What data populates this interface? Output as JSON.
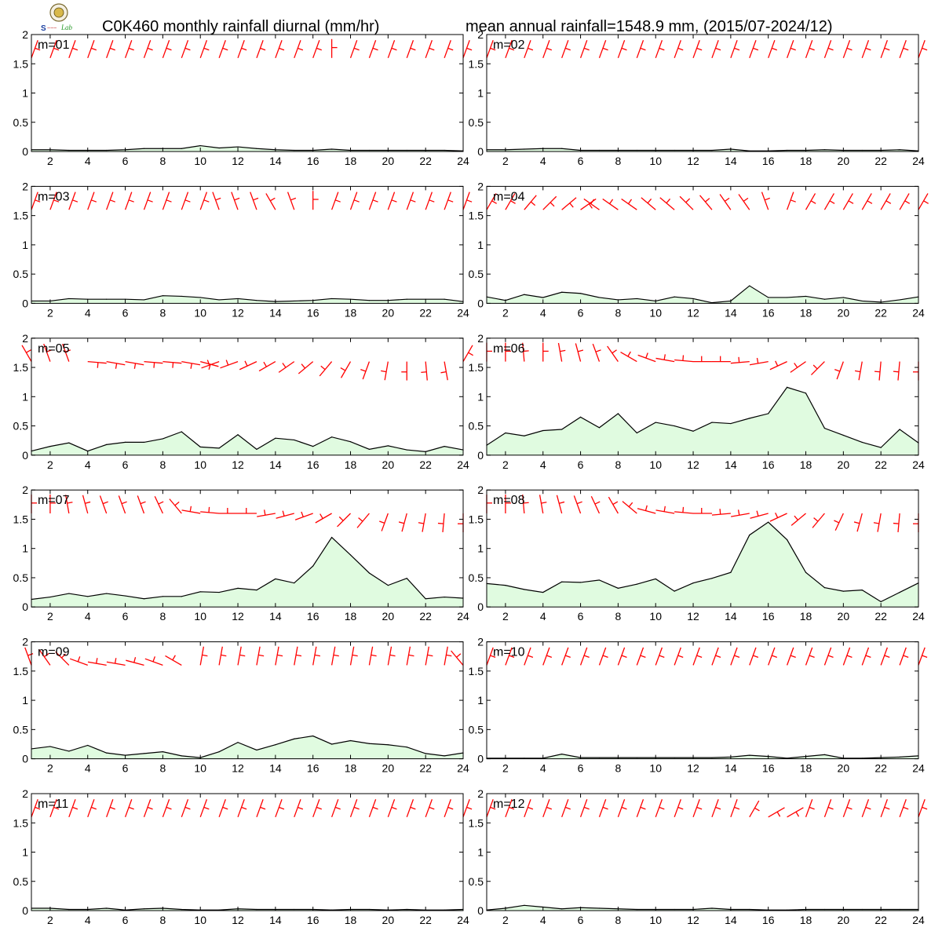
{
  "page": {
    "title_left": "C0K460 monthly rainfall diurnal (mm/hr)",
    "title_right": "mean annual rainfall=1548.9 mm, (2015/07-2024/12)",
    "logo_text": "Lab"
  },
  "colors": {
    "fill": "#e0fbe0",
    "line": "#000000",
    "barb": "#ff0000",
    "axis": "#000000",
    "background": "#ffffff"
  },
  "chart_data": [
    {
      "type": "area",
      "month_label": "m=01",
      "x": [
        1,
        2,
        3,
        4,
        5,
        6,
        7,
        8,
        9,
        10,
        11,
        12,
        13,
        14,
        15,
        16,
        17,
        18,
        19,
        20,
        21,
        22,
        23,
        24
      ],
      "values": [
        0.03,
        0.03,
        0.02,
        0.02,
        0.02,
        0.03,
        0.05,
        0.05,
        0.05,
        0.1,
        0.06,
        0.08,
        0.05,
        0.03,
        0.02,
        0.02,
        0.04,
        0.02,
        0.02,
        0.02,
        0.02,
        0.02,
        0.02,
        0.01
      ],
      "wind_dir_deg": [
        20,
        20,
        20,
        20,
        20,
        20,
        20,
        20,
        20,
        20,
        20,
        20,
        20,
        20,
        20,
        20,
        0,
        20,
        20,
        20,
        20,
        20,
        20,
        20
      ],
      "ylim": [
        0,
        2
      ],
      "xlim": [
        1,
        24
      ],
      "x_ticks": [
        2,
        4,
        6,
        8,
        10,
        12,
        14,
        16,
        18,
        20,
        22,
        24
      ],
      "y_ticks": [
        "0",
        "0.5",
        "1",
        "1.5",
        "2"
      ]
    },
    {
      "type": "area",
      "month_label": "m=02",
      "x": [
        1,
        2,
        3,
        4,
        5,
        6,
        7,
        8,
        9,
        10,
        11,
        12,
        13,
        14,
        15,
        16,
        17,
        18,
        19,
        20,
        21,
        22,
        23,
        24
      ],
      "values": [
        0.03,
        0.03,
        0.04,
        0.05,
        0.05,
        0.02,
        0.02,
        0.02,
        0.02,
        0.02,
        0.02,
        0.02,
        0.02,
        0.04,
        0.01,
        0.01,
        0.02,
        0.02,
        0.03,
        0.02,
        0.02,
        0.02,
        0.03,
        0.01
      ],
      "wind_dir_deg": [
        20,
        20,
        20,
        20,
        20,
        20,
        20,
        20,
        20,
        20,
        20,
        20,
        20,
        20,
        20,
        20,
        20,
        20,
        20,
        20,
        20,
        20,
        20,
        20
      ],
      "ylim": [
        0,
        2
      ],
      "xlim": [
        1,
        24
      ],
      "x_ticks": [
        2,
        4,
        6,
        8,
        10,
        12,
        14,
        16,
        18,
        20,
        22,
        24
      ],
      "y_ticks": [
        "0",
        "0.5",
        "1",
        "1.5",
        "2"
      ]
    },
    {
      "type": "area",
      "month_label": "m=03",
      "x": [
        1,
        2,
        3,
        4,
        5,
        6,
        7,
        8,
        9,
        10,
        11,
        12,
        13,
        14,
        15,
        16,
        17,
        18,
        19,
        20,
        21,
        22,
        23,
        24
      ],
      "values": [
        0.04,
        0.04,
        0.08,
        0.07,
        0.07,
        0.07,
        0.06,
        0.13,
        0.12,
        0.1,
        0.06,
        0.08,
        0.05,
        0.03,
        0.04,
        0.05,
        0.08,
        0.07,
        0.05,
        0.05,
        0.07,
        0.07,
        0.07,
        0.03
      ],
      "wind_dir_deg": [
        20,
        20,
        20,
        20,
        20,
        20,
        20,
        20,
        20,
        20,
        -20,
        -20,
        -20,
        -30,
        -20,
        0,
        20,
        20,
        20,
        20,
        20,
        20,
        20,
        20
      ],
      "ylim": [
        0,
        2
      ],
      "xlim": [
        1,
        24
      ],
      "x_ticks": [
        2,
        4,
        6,
        8,
        10,
        12,
        14,
        16,
        18,
        20,
        22,
        24
      ],
      "y_ticks": [
        "0",
        "0.5",
        "1",
        "1.5",
        "2"
      ]
    },
    {
      "type": "area",
      "month_label": "m=04",
      "x": [
        1,
        2,
        3,
        4,
        5,
        6,
        7,
        8,
        9,
        10,
        11,
        12,
        13,
        14,
        15,
        16,
        17,
        18,
        19,
        20,
        21,
        22,
        23,
        24
      ],
      "values": [
        0.11,
        0.05,
        0.15,
        0.1,
        0.19,
        0.17,
        0.1,
        0.06,
        0.08,
        0.04,
        0.11,
        0.08,
        0.01,
        0.04,
        0.3,
        0.1,
        0.1,
        0.12,
        0.07,
        0.1,
        0.04,
        0.02,
        0.06,
        0.11
      ],
      "wind_dir_deg": [
        30,
        30,
        40,
        45,
        50,
        55,
        -55,
        -55,
        -55,
        -50,
        -50,
        -45,
        -40,
        -35,
        -35,
        -20,
        20,
        30,
        30,
        30,
        30,
        30,
        30,
        30
      ],
      "ylim": [
        0,
        2
      ],
      "xlim": [
        1,
        24
      ],
      "x_ticks": [
        2,
        4,
        6,
        8,
        10,
        12,
        14,
        16,
        18,
        20,
        22,
        24
      ],
      "y_ticks": [
        "0",
        "0.5",
        "1",
        "1.5",
        "2"
      ]
    },
    {
      "type": "area",
      "month_label": "m=05",
      "x": [
        1,
        2,
        3,
        4,
        5,
        6,
        7,
        8,
        9,
        10,
        11,
        12,
        13,
        14,
        15,
        16,
        17,
        18,
        19,
        20,
        21,
        22,
        23,
        24
      ],
      "values": [
        0.07,
        0.15,
        0.21,
        0.07,
        0.18,
        0.22,
        0.22,
        0.28,
        0.4,
        0.14,
        0.12,
        0.35,
        0.1,
        0.29,
        0.26,
        0.15,
        0.31,
        0.23,
        0.1,
        0.16,
        0.09,
        0.06,
        0.15,
        0.09
      ],
      "wind_dir_deg": [
        -30,
        -20,
        -20,
        95,
        100,
        100,
        95,
        95,
        100,
        105,
        -110,
        -110,
        -115,
        -120,
        -125,
        -130,
        -140,
        -150,
        -160,
        -170,
        180,
        175,
        170,
        30
      ],
      "ylim": [
        0,
        2
      ],
      "xlim": [
        1,
        24
      ],
      "x_ticks": [
        2,
        4,
        6,
        8,
        10,
        12,
        14,
        16,
        18,
        20,
        22,
        24
      ],
      "y_ticks": [
        "0",
        "0.5",
        "1",
        "1.5",
        "2"
      ]
    },
    {
      "type": "area",
      "month_label": "m=06",
      "x": [
        1,
        2,
        3,
        4,
        5,
        6,
        7,
        8,
        9,
        10,
        11,
        12,
        13,
        14,
        15,
        16,
        17,
        18,
        19,
        20,
        21,
        22,
        23,
        24
      ],
      "values": [
        0.17,
        0.38,
        0.33,
        0.42,
        0.44,
        0.65,
        0.47,
        0.71,
        0.38,
        0.56,
        0.5,
        0.41,
        0.56,
        0.54,
        0.63,
        0.71,
        1.16,
        1.06,
        0.46,
        0.34,
        0.22,
        0.13,
        0.44,
        0.21
      ],
      "wind_dir_deg": [
        0,
        0,
        -5,
        0,
        -10,
        -15,
        -20,
        -35,
        -60,
        -70,
        -80,
        -85,
        -90,
        -90,
        -95,
        -100,
        -115,
        -125,
        -135,
        -160,
        -170,
        -175,
        -175,
        -180
      ],
      "ylim": [
        0,
        2
      ],
      "xlim": [
        1,
        24
      ],
      "x_ticks": [
        2,
        4,
        6,
        8,
        10,
        12,
        14,
        16,
        18,
        20,
        22,
        24
      ],
      "y_ticks": [
        "0",
        "0.5",
        "1",
        "1.5",
        "2"
      ]
    },
    {
      "type": "area",
      "month_label": "m=07",
      "x": [
        1,
        2,
        3,
        4,
        5,
        6,
        7,
        8,
        9,
        10,
        11,
        12,
        13,
        14,
        15,
        16,
        17,
        18,
        19,
        20,
        21,
        22,
        23,
        24
      ],
      "values": [
        0.13,
        0.17,
        0.23,
        0.18,
        0.23,
        0.19,
        0.14,
        0.18,
        0.18,
        0.26,
        0.25,
        0.32,
        0.29,
        0.48,
        0.41,
        0.7,
        1.19,
        0.89,
        0.58,
        0.37,
        0.49,
        0.14,
        0.17,
        0.15
      ],
      "wind_dir_deg": [
        0,
        0,
        -10,
        -15,
        -20,
        -20,
        -20,
        -25,
        -40,
        -80,
        -85,
        -90,
        -90,
        -100,
        -105,
        -110,
        -120,
        -135,
        -140,
        -160,
        -165,
        -170,
        -175,
        -180
      ],
      "ylim": [
        0,
        2
      ],
      "xlim": [
        1,
        24
      ],
      "x_ticks": [
        2,
        4,
        6,
        8,
        10,
        12,
        14,
        16,
        18,
        20,
        22,
        24
      ],
      "y_ticks": [
        "0",
        "0.5",
        "1",
        "1.5",
        "2"
      ]
    },
    {
      "type": "area",
      "month_label": "m=08",
      "x": [
        1,
        2,
        3,
        4,
        5,
        6,
        7,
        8,
        9,
        10,
        11,
        12,
        13,
        14,
        15,
        16,
        17,
        18,
        19,
        20,
        21,
        22,
        23,
        24
      ],
      "values": [
        0.4,
        0.37,
        0.3,
        0.25,
        0.43,
        0.42,
        0.46,
        0.32,
        0.39,
        0.48,
        0.27,
        0.41,
        0.49,
        0.59,
        1.23,
        1.45,
        1.15,
        0.59,
        0.33,
        0.27,
        0.29,
        0.09,
        0.25,
        0.41
      ],
      "wind_dir_deg": [
        0,
        0,
        -5,
        -10,
        -15,
        -20,
        -25,
        -30,
        -50,
        -75,
        -80,
        -85,
        -90,
        -95,
        -100,
        -105,
        -115,
        -130,
        -140,
        -155,
        -165,
        -170,
        -175,
        -180
      ],
      "ylim": [
        0,
        2
      ],
      "xlim": [
        1,
        24
      ],
      "x_ticks": [
        2,
        4,
        6,
        8,
        10,
        12,
        14,
        16,
        18,
        20,
        22,
        24
      ],
      "y_ticks": [
        "0",
        "0.5",
        "1",
        "1.5",
        "2"
      ]
    },
    {
      "type": "area",
      "month_label": "m=09",
      "x": [
        1,
        2,
        3,
        4,
        5,
        6,
        7,
        8,
        9,
        10,
        11,
        12,
        13,
        14,
        15,
        16,
        17,
        18,
        19,
        20,
        21,
        22,
        23,
        24
      ],
      "values": [
        0.17,
        0.21,
        0.13,
        0.23,
        0.1,
        0.06,
        0.09,
        0.12,
        0.05,
        0.02,
        0.12,
        0.28,
        0.15,
        0.24,
        0.34,
        0.39,
        0.25,
        0.31,
        0.26,
        0.24,
        0.2,
        0.09,
        0.05,
        0.1
      ],
      "wind_dir_deg": [
        -20,
        -35,
        -45,
        -70,
        -80,
        -80,
        -75,
        -70,
        -60,
        10,
        10,
        10,
        10,
        10,
        10,
        10,
        10,
        10,
        10,
        10,
        10,
        10,
        10,
        -40
      ],
      "ylim": [
        0,
        2
      ],
      "xlim": [
        1,
        24
      ],
      "x_ticks": [
        2,
        4,
        6,
        8,
        10,
        12,
        14,
        16,
        18,
        20,
        22,
        24
      ],
      "y_ticks": [
        "0",
        "0.5",
        "1",
        "1.5",
        "2"
      ]
    },
    {
      "type": "area",
      "month_label": "m=10",
      "x": [
        1,
        2,
        3,
        4,
        5,
        6,
        7,
        8,
        9,
        10,
        11,
        12,
        13,
        14,
        15,
        16,
        17,
        18,
        19,
        20,
        21,
        22,
        23,
        24
      ],
      "values": [
        0.01,
        0.01,
        0.01,
        0.01,
        0.08,
        0.02,
        0.02,
        0.02,
        0.02,
        0.02,
        0.02,
        0.02,
        0.02,
        0.03,
        0.06,
        0.04,
        0.01,
        0.04,
        0.07,
        0.01,
        0.01,
        0.02,
        0.03,
        0.05
      ],
      "wind_dir_deg": [
        20,
        20,
        20,
        20,
        20,
        20,
        20,
        20,
        20,
        20,
        20,
        20,
        20,
        20,
        20,
        20,
        20,
        20,
        20,
        20,
        20,
        20,
        20,
        20
      ],
      "ylim": [
        0,
        2
      ],
      "xlim": [
        1,
        24
      ],
      "x_ticks": [
        2,
        4,
        6,
        8,
        10,
        12,
        14,
        16,
        18,
        20,
        22,
        24
      ],
      "y_ticks": [
        "0",
        "0.5",
        "1",
        "1.5",
        "2"
      ]
    },
    {
      "type": "area",
      "month_label": "m=11",
      "x": [
        1,
        2,
        3,
        4,
        5,
        6,
        7,
        8,
        9,
        10,
        11,
        12,
        13,
        14,
        15,
        16,
        17,
        18,
        19,
        20,
        21,
        22,
        23,
        24
      ],
      "values": [
        0.04,
        0.04,
        0.02,
        0.02,
        0.04,
        0.01,
        0.03,
        0.04,
        0.02,
        0.01,
        0.01,
        0.03,
        0.02,
        0.02,
        0.02,
        0.02,
        0.01,
        0.02,
        0.02,
        0.01,
        0.02,
        0.01,
        0.01,
        0.02
      ],
      "wind_dir_deg": [
        20,
        20,
        20,
        20,
        20,
        20,
        20,
        20,
        20,
        20,
        20,
        20,
        20,
        20,
        20,
        20,
        20,
        20,
        20,
        20,
        20,
        20,
        20,
        20
      ],
      "ylim": [
        0,
        2
      ],
      "xlim": [
        1,
        24
      ],
      "x_ticks": [
        2,
        4,
        6,
        8,
        10,
        12,
        14,
        16,
        18,
        20,
        22,
        24
      ],
      "y_ticks": [
        "0",
        "0.5",
        "1",
        "1.5",
        "2"
      ]
    },
    {
      "type": "area",
      "month_label": "m=12",
      "x": [
        1,
        2,
        3,
        4,
        5,
        6,
        7,
        8,
        9,
        10,
        11,
        12,
        13,
        14,
        15,
        16,
        17,
        18,
        19,
        20,
        21,
        22,
        23,
        24
      ],
      "values": [
        0.01,
        0.04,
        0.09,
        0.06,
        0.03,
        0.05,
        0.04,
        0.03,
        0.02,
        0.02,
        0.02,
        0.02,
        0.04,
        0.02,
        0.02,
        0.01,
        0.01,
        0.02,
        0.02,
        0.02,
        0.02,
        0.02,
        0.02,
        0.02
      ],
      "wind_dir_deg": [
        20,
        20,
        20,
        20,
        20,
        20,
        20,
        20,
        20,
        20,
        20,
        20,
        20,
        20,
        30,
        60,
        60,
        20,
        20,
        20,
        20,
        20,
        20,
        20
      ],
      "ylim": [
        0,
        2
      ],
      "xlim": [
        1,
        24
      ],
      "x_ticks": [
        2,
        4,
        6,
        8,
        10,
        12,
        14,
        16,
        18,
        20,
        22,
        24
      ],
      "y_ticks": [
        "0",
        "0.5",
        "1",
        "1.5",
        "2"
      ]
    }
  ]
}
